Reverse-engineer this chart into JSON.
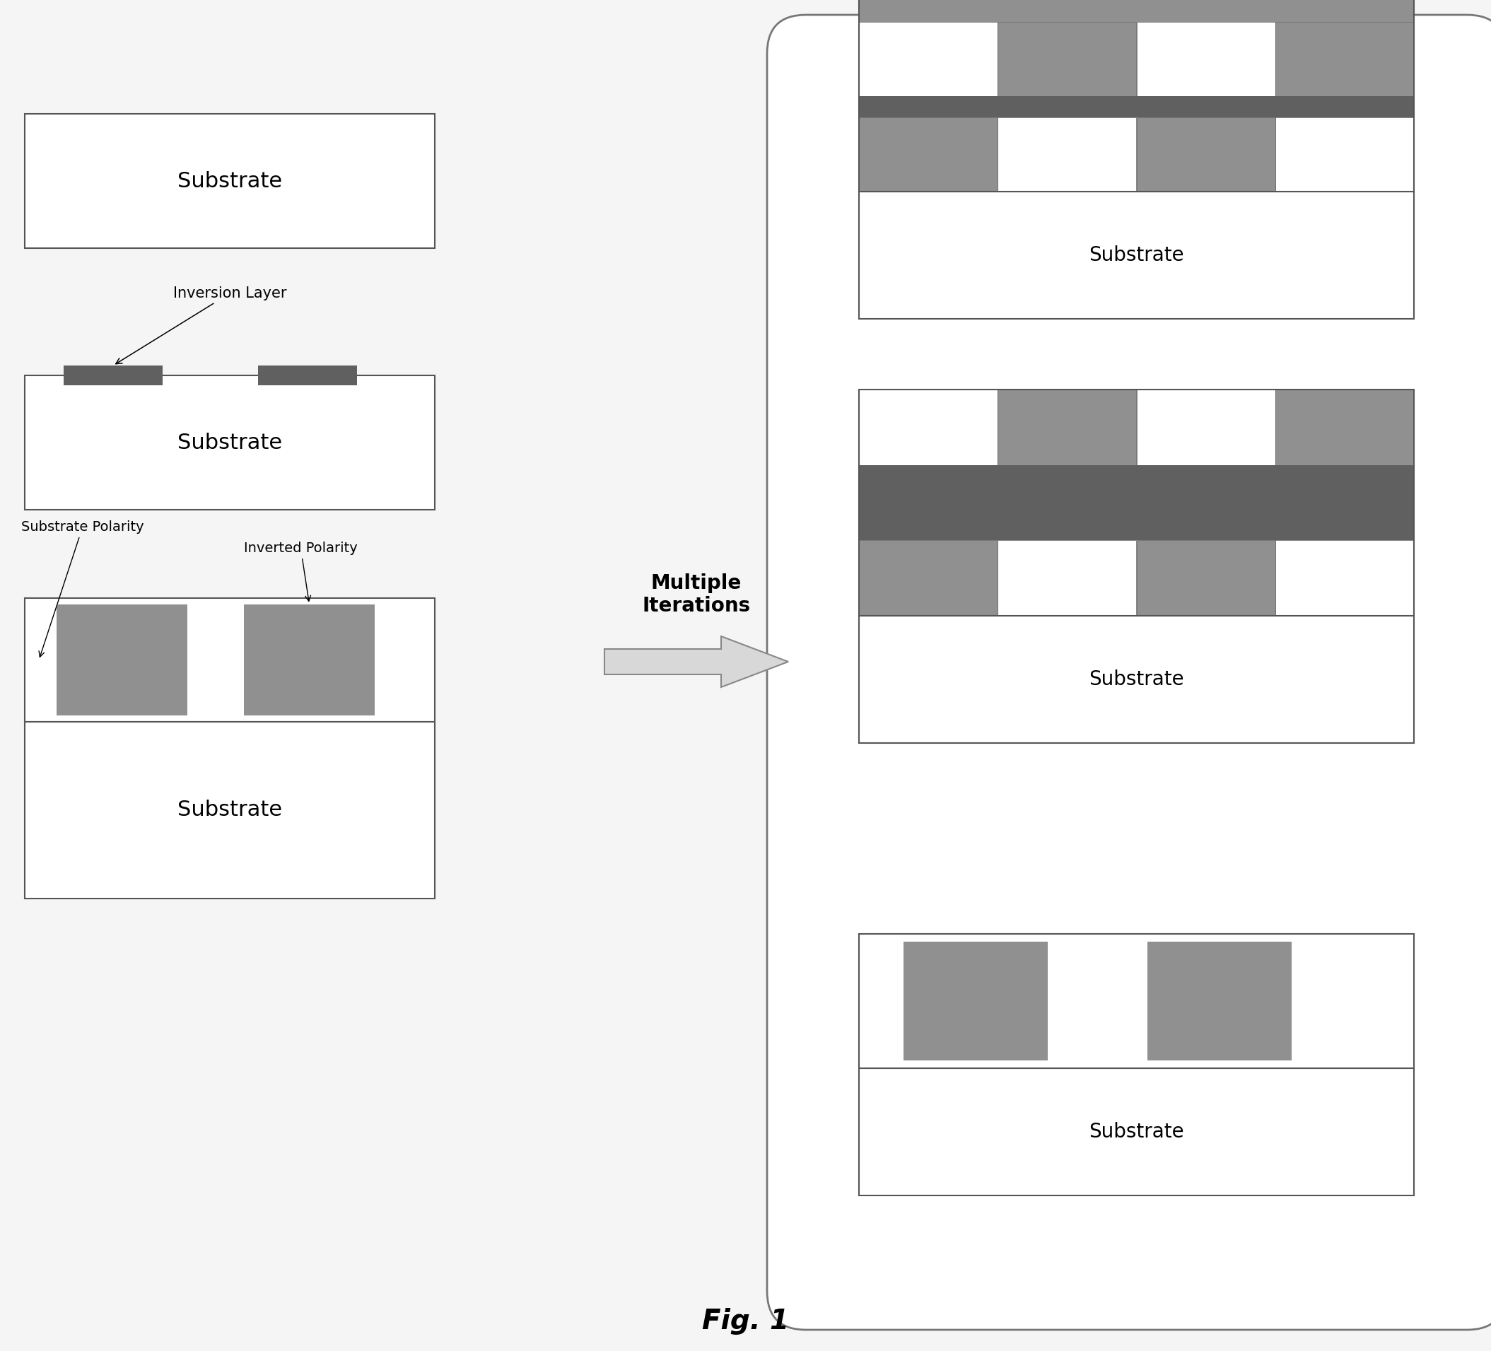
{
  "bg_color": "#f5f5f5",
  "gray_dark": "#606060",
  "gray_medium": "#909090",
  "gray_light": "#b8b8b8",
  "white": "#ffffff",
  "border_color": "#555555",
  "fig_title": "Fig. 1",
  "label_substrate": "Substrate",
  "label_inversion": "Inversion Layer",
  "label_substrate_polarity": "Substrate Polarity",
  "label_inverted_polarity": "Inverted Polarity",
  "label_multiple_iterations": "Multiple\nIterations",
  "fig_w": 21.09,
  "fig_h": 19.11
}
